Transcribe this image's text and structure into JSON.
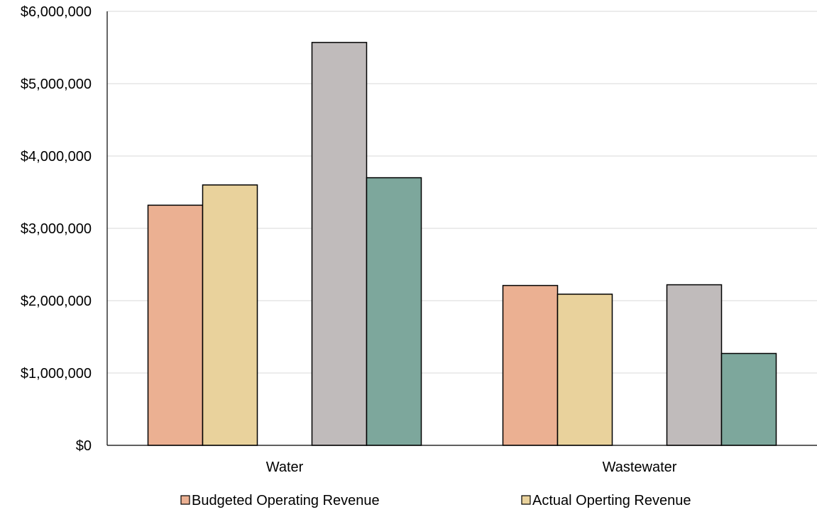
{
  "chart_data": {
    "type": "bar",
    "categories": [
      "Water",
      "Wastewater"
    ],
    "series": [
      {
        "name": "Budgeted Operating Revenue",
        "values": [
          3320000,
          2210000
        ],
        "color": "#ebb092"
      },
      {
        "name": "Actual Operting Revenue",
        "values": [
          3600000,
          2090000
        ],
        "color": "#e9d29c"
      },
      {
        "name": "",
        "values": [
          5570000,
          2220000
        ],
        "color": "#c0bbbb"
      },
      {
        "name": "",
        "values": [
          3700000,
          1270000
        ],
        "color": "#7da79c"
      }
    ],
    "title": "",
    "xlabel": "",
    "ylabel": "",
    "ylim": [
      0,
      6000000
    ],
    "y_ticks": [
      0,
      1000000,
      2000000,
      3000000,
      4000000,
      5000000,
      6000000
    ],
    "y_tick_labels": [
      "$0",
      "$1,000,000",
      "$2,000,000",
      "$3,000,000",
      "$4,000,000",
      "$5,000,000",
      "$6,000,000"
    ],
    "grid": true,
    "legend_position": "bottom"
  }
}
